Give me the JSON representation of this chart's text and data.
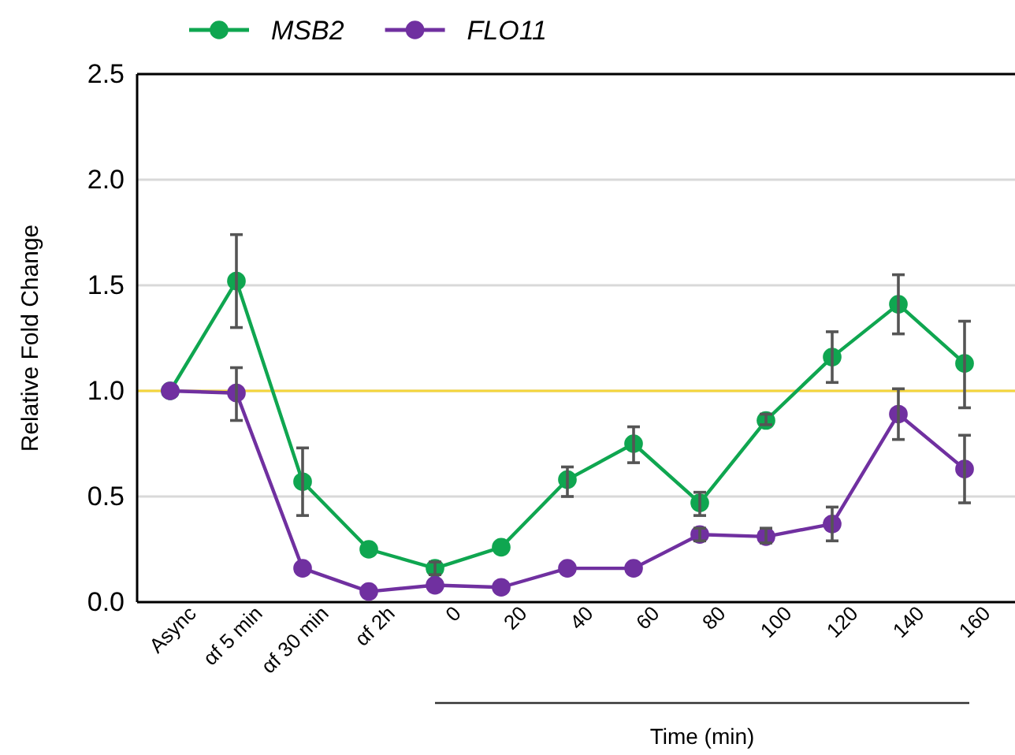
{
  "chart_data": {
    "type": "line",
    "ylabel": "Relative Fold Change",
    "xlabel": "Time (min)",
    "categories": [
      "Async",
      "αf 5 min",
      "αf 30 min",
      "αf 2h",
      "0",
      "20",
      "40",
      "60",
      "80",
      "100",
      "120",
      "140",
      "160"
    ],
    "series": [
      {
        "name": "MSB2",
        "color": "#0fa650",
        "values": [
          1.0,
          1.52,
          0.57,
          0.25,
          0.16,
          0.26,
          0.58,
          0.75,
          0.47,
          0.86,
          1.16,
          1.41,
          1.13
        ],
        "errors": [
          null,
          [
            1.3,
            1.74
          ],
          [
            0.41,
            0.73
          ],
          null,
          [
            0.13,
            0.19
          ],
          null,
          [
            0.5,
            0.64
          ],
          [
            0.66,
            0.83
          ],
          [
            0.41,
            0.52
          ],
          [
            0.84,
            0.89
          ],
          [
            1.04,
            1.28
          ],
          [
            1.27,
            1.55
          ],
          [
            0.92,
            1.33
          ]
        ]
      },
      {
        "name": "FLO11",
        "color": "#7030a0",
        "values": [
          1.0,
          0.99,
          0.16,
          0.05,
          0.08,
          0.07,
          0.16,
          0.16,
          0.32,
          0.31,
          0.37,
          0.89,
          0.63
        ],
        "errors": [
          null,
          [
            0.86,
            1.11
          ],
          null,
          null,
          null,
          null,
          null,
          null,
          [
            0.29,
            0.35
          ],
          [
            0.28,
            0.35
          ],
          [
            0.29,
            0.45
          ],
          [
            0.77,
            1.01
          ],
          [
            0.47,
            0.79
          ]
        ]
      }
    ],
    "ylim": [
      0,
      2.5
    ],
    "yticks": [
      {
        "value": 0,
        "label": "0.0"
      },
      {
        "value": 0.5,
        "label": "0.5"
      },
      {
        "value": 1,
        "label": "1.0"
      },
      {
        "value": 1.5,
        "label": "1.5"
      },
      {
        "value": 2,
        "label": "2.0"
      },
      {
        "value": 2.5,
        "label": "2.5"
      }
    ],
    "grid": "y",
    "legend": "top left",
    "marker": "circle",
    "line_style": "solid",
    "ref_lines": [
      {
        "axis": "y",
        "value": 1.0,
        "color": "#f5d63a"
      }
    ]
  }
}
